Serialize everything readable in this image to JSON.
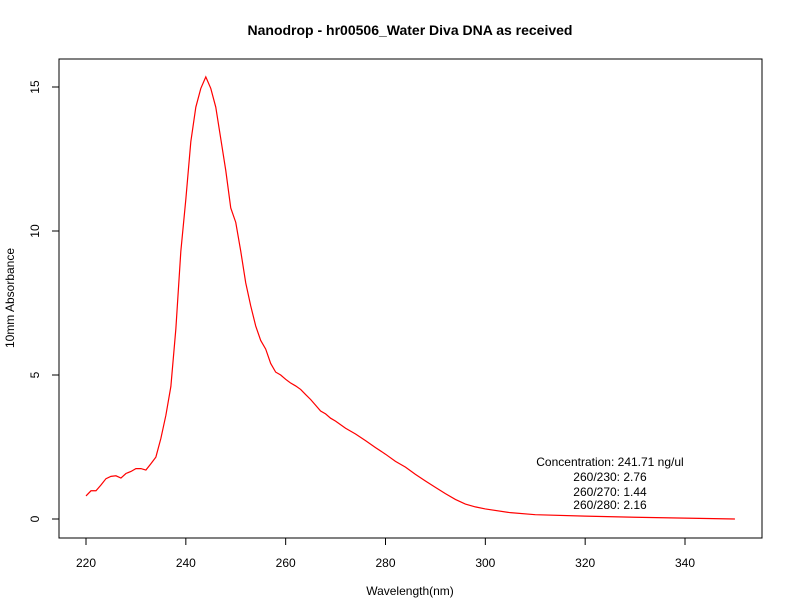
{
  "chart_data": {
    "type": "line",
    "title": "Nanodrop - hr00506_Water Diva DNA as received",
    "xlabel": "Wavelength(nm)",
    "ylabel": "10mm Absorbance",
    "xlim": [
      220,
      350
    ],
    "ylim": [
      0,
      15.5
    ],
    "xticks": [
      "220",
      "240",
      "260",
      "280",
      "300",
      "320",
      "340"
    ],
    "yticks": [
      "0",
      "5",
      "10",
      "15"
    ],
    "grid": false,
    "line_color": "#ff0000",
    "series": [
      {
        "x": [
          220,
          221,
          222,
          223,
          224,
          225,
          226,
          227,
          228,
          229,
          230,
          231,
          232,
          233,
          234,
          235,
          236,
          237,
          238,
          239,
          240,
          241,
          242,
          243,
          244,
          245,
          246,
          247,
          248,
          249,
          250,
          251,
          252,
          253,
          254,
          255,
          256,
          257,
          258,
          259,
          260,
          261,
          262,
          263,
          264,
          265,
          266,
          267,
          268,
          269,
          270,
          272,
          274,
          276,
          278,
          280,
          282,
          284,
          286,
          288,
          290,
          292,
          294,
          296,
          298,
          300,
          305,
          310,
          320,
          330,
          340,
          350
        ],
        "y": [
          0.8,
          0.98,
          0.98,
          1.18,
          1.4,
          1.48,
          1.5,
          1.42,
          1.58,
          1.65,
          1.75,
          1.75,
          1.7,
          1.92,
          2.15,
          2.8,
          3.6,
          4.6,
          6.6,
          9.3,
          11.1,
          13.1,
          14.3,
          14.95,
          15.35,
          14.95,
          14.3,
          13.2,
          12.1,
          10.8,
          10.3,
          9.3,
          8.2,
          7.4,
          6.7,
          6.2,
          5.9,
          5.4,
          5.1,
          5.0,
          4.85,
          4.72,
          4.62,
          4.5,
          4.32,
          4.15,
          3.95,
          3.75,
          3.65,
          3.5,
          3.4,
          3.15,
          2.95,
          2.72,
          2.48,
          2.25,
          2.0,
          1.8,
          1.55,
          1.32,
          1.1,
          0.88,
          0.68,
          0.52,
          0.42,
          0.35,
          0.22,
          0.15,
          0.1,
          0.06,
          0.03,
          0.0
        ]
      }
    ],
    "annotation": {
      "concentration": "Concentration: 241.71 ng/ul",
      "ratio_230": "260/230: 2.76",
      "ratio_270": "260/270: 1.44",
      "ratio_280": "260/280: 2.16"
    }
  }
}
